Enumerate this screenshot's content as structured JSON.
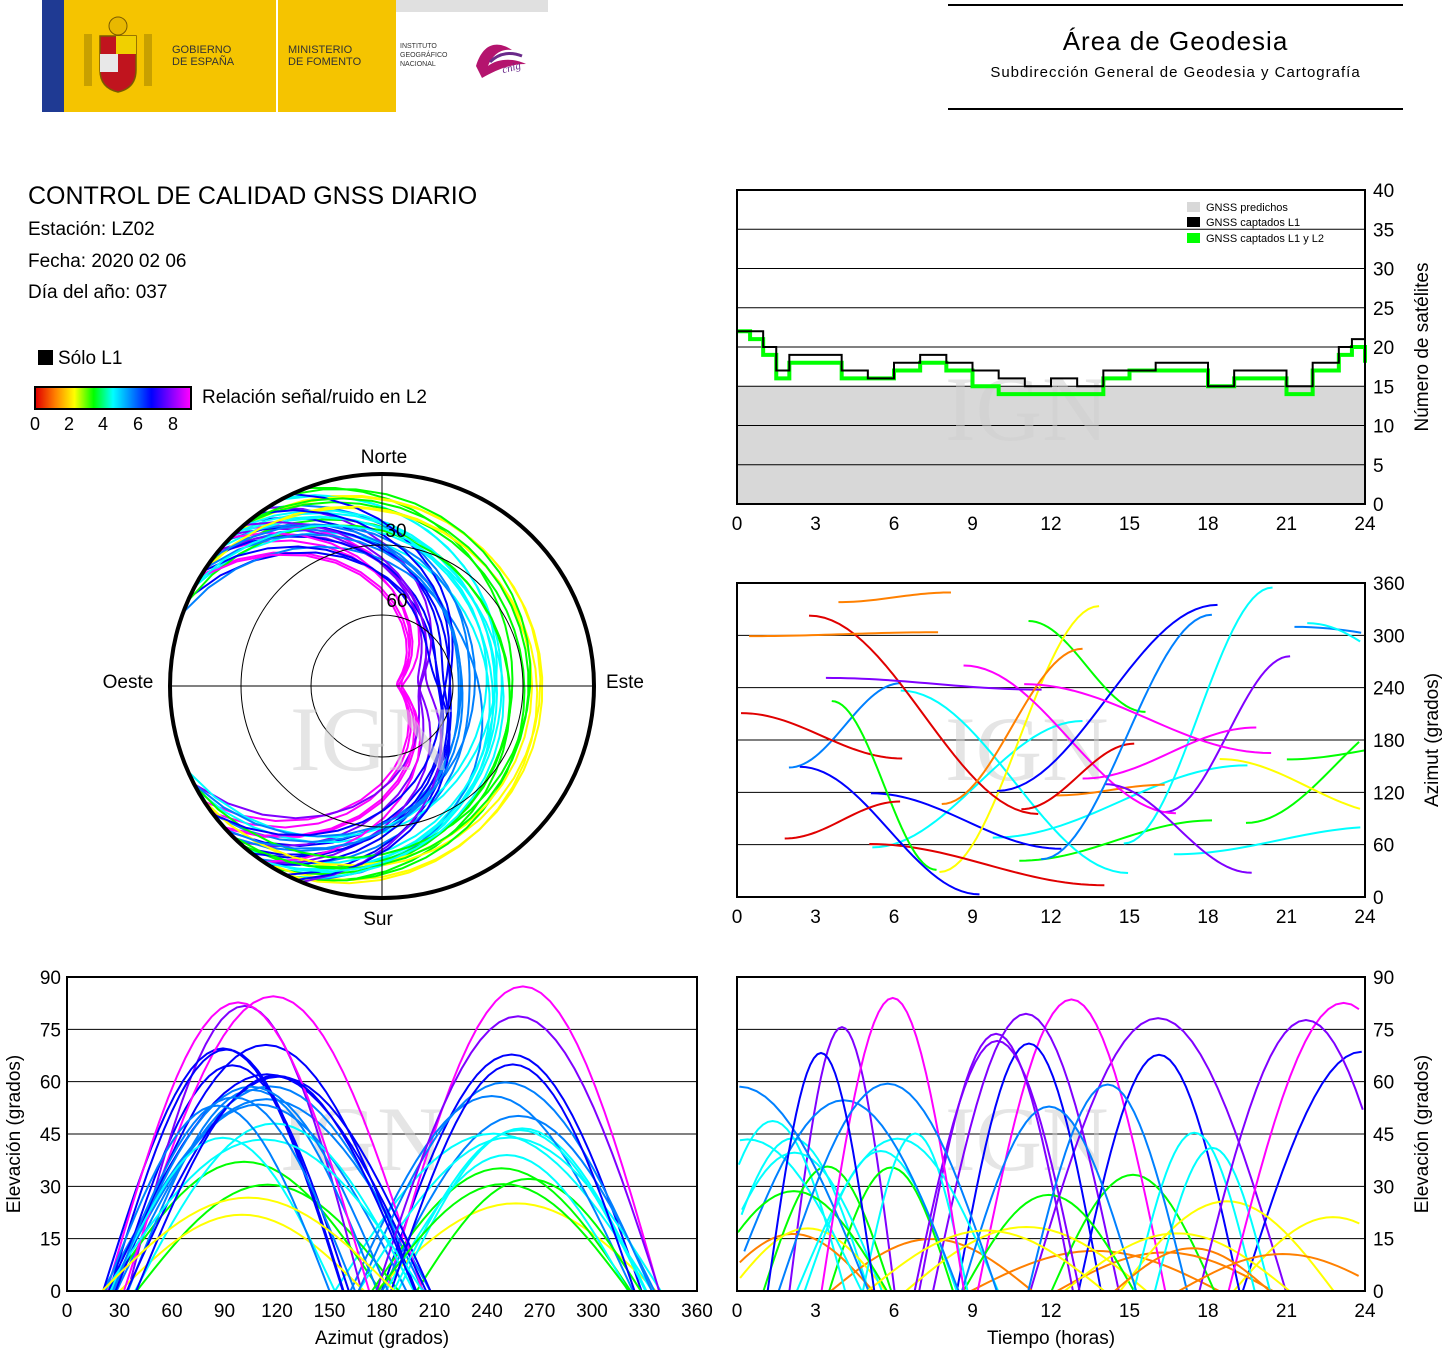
{
  "header": {
    "gov_line1": "GOBIERNO",
    "gov_line2": "DE ESPAÑA",
    "min_line1": "MINISTERIO",
    "min_line2": "DE FOMENTO",
    "ign_line1": "INSTITUTO",
    "ign_line2": "GEOGRÁFICO",
    "ign_line3": "NACIONAL",
    "cnig": "cnig",
    "area_title": "Área de Geodesia",
    "area_subtitle": "Subdirección General de Geodesia y Cartografía"
  },
  "info": {
    "title": "CONTROL DE CALIDAD GNSS DIARIO",
    "station": "Estación: LZ02",
    "date": "Fecha: 2020 02 06",
    "doy": "Día del año: 037"
  },
  "legend": {
    "l1_only": "Sólo L1",
    "snr_label": "Relación señal/ruido en L2",
    "snr_ticks": [
      "0",
      "2",
      "4",
      "6",
      "8"
    ],
    "colorscale": [
      "#e00000",
      "#ff8000",
      "#ffff00",
      "#00ff00",
      "#00ffff",
      "#0080ff",
      "#0000ff",
      "#8000ff",
      "#ff00ff"
    ]
  },
  "watermark": "IGN",
  "chart_data": [
    {
      "type": "polar",
      "id": "skyplot",
      "directions": {
        "north": "Norte",
        "south": "Sur",
        "east": "Este",
        "west": "Oeste"
      },
      "elevation_rings": [
        "30",
        "60"
      ],
      "tracks_description_only_visual": true
    },
    {
      "type": "area",
      "id": "satellites",
      "ylabel": "Número de satélites",
      "xlim": [
        0,
        24
      ],
      "ylim": [
        0,
        40
      ],
      "xticks": [
        "0",
        "3",
        "6",
        "9",
        "12",
        "15",
        "18",
        "21",
        "24"
      ],
      "yticks": [
        "0",
        "5",
        "10",
        "15",
        "20",
        "25",
        "30",
        "35",
        "40"
      ],
      "legend": [
        "GNSS predichos",
        "GNSS captados L1",
        "GNSS captados L1 y L2"
      ],
      "legend_colors": [
        "#d8d8d8",
        "#000000",
        "#00ff00"
      ],
      "predicted_level": 15,
      "x": [
        0,
        0.5,
        1,
        1.5,
        2,
        3,
        4,
        5,
        6,
        7,
        8,
        9,
        10,
        11,
        12,
        13,
        14,
        15,
        16,
        17,
        18,
        19,
        20,
        21,
        22,
        23,
        23.5,
        24
      ],
      "l1": [
        22,
        22,
        20,
        17,
        19,
        19,
        17,
        16,
        18,
        19,
        18,
        17,
        16,
        15,
        16,
        15,
        17,
        17,
        18,
        18,
        15,
        17,
        17,
        15,
        18,
        20,
        21,
        19
      ],
      "l1l2": [
        22,
        21,
        19,
        16,
        18,
        18,
        16,
        16,
        17,
        18,
        17,
        15,
        14,
        14,
        14,
        14,
        16,
        17,
        17,
        17,
        15,
        16,
        16,
        14,
        17,
        19,
        20,
        18
      ]
    },
    {
      "type": "scatter",
      "id": "azimuth_time",
      "ylabel": "Azimut (grados)",
      "xlim": [
        0,
        24
      ],
      "ylim": [
        0,
        360
      ],
      "xticks": [
        "0",
        "3",
        "6",
        "9",
        "12",
        "15",
        "18",
        "21",
        "24"
      ],
      "yticks": [
        "0",
        "60",
        "120",
        "180",
        "240",
        "300",
        "360"
      ]
    },
    {
      "type": "scatter",
      "id": "elevation_azimuth",
      "xlabel": "Azimut (grados)",
      "ylabel": "Elevación (grados)",
      "xlim": [
        0,
        360
      ],
      "ylim": [
        0,
        90
      ],
      "xticks": [
        "0",
        "30",
        "60",
        "90",
        "120",
        "150",
        "180",
        "210",
        "240",
        "270",
        "300",
        "330",
        "360"
      ],
      "yticks": [
        "0",
        "15",
        "30",
        "45",
        "60",
        "75",
        "90"
      ]
    },
    {
      "type": "scatter",
      "id": "elevation_time",
      "xlabel": "Tiempo (horas)",
      "ylabel": "Elevación (grados)",
      "xlim": [
        0,
        24
      ],
      "ylim": [
        0,
        90
      ],
      "xticks": [
        "0",
        "3",
        "6",
        "9",
        "12",
        "15",
        "18",
        "21",
        "24"
      ],
      "yticks": [
        "0",
        "15",
        "30",
        "45",
        "60",
        "75",
        "90"
      ]
    }
  ]
}
